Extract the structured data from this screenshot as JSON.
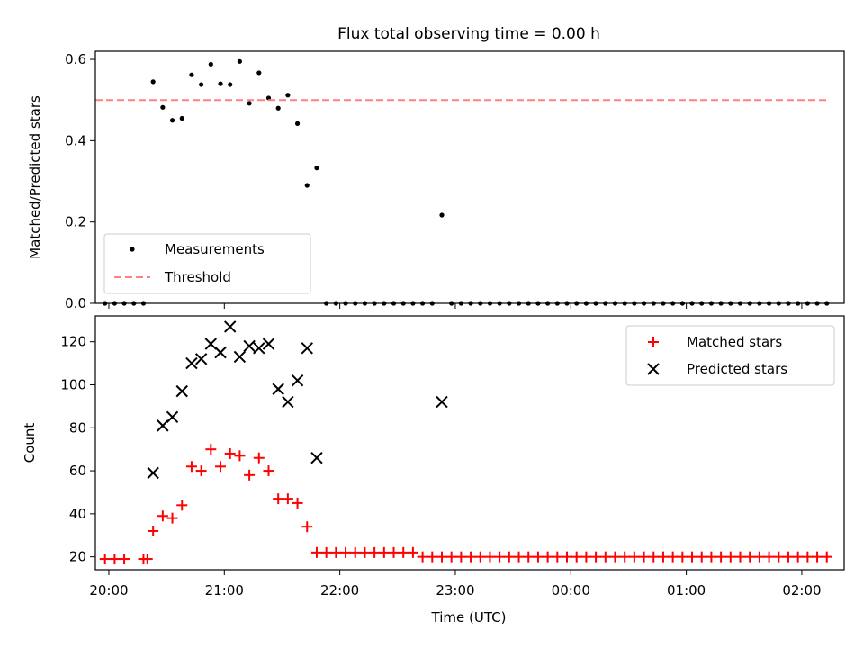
{
  "title": "Flux total observing time = 0.00 h",
  "colors": {
    "measurement": "#000000",
    "threshold": "#ff8080",
    "matched": "#ff0000",
    "predicted": "#000000",
    "axis": "#000000"
  },
  "chart_data": [
    {
      "type": "scatter",
      "panel": "top",
      "title": "Flux total observing time = 0.00 h",
      "ylabel": "Matched/Predicted stars",
      "ylim": [
        0,
        0.62
      ],
      "yticks": [
        0.0,
        0.2,
        0.4,
        0.6
      ],
      "ytick_labels": [
        "0.0",
        "0.2",
        "0.4",
        "0.6"
      ],
      "xlim": [
        "19:53",
        "02:22"
      ],
      "legend": {
        "placement": "lower-left",
        "entries": [
          {
            "label": "Measurements",
            "marker": "dot",
            "color": "#000000"
          },
          {
            "label": "Threshold",
            "marker": "dashed-line",
            "color": "#ff8080"
          }
        ]
      },
      "series": [
        {
          "name": "Measurements",
          "marker": "dot",
          "points": [
            [
              "19:58",
              0.0
            ],
            [
              "20:03",
              0.0
            ],
            [
              "20:08",
              0.0
            ],
            [
              "20:13",
              0.0
            ],
            [
              "20:18",
              0.0
            ],
            [
              "20:23",
              0.545
            ],
            [
              "20:28",
              0.482
            ],
            [
              "20:33",
              0.45
            ],
            [
              "20:38",
              0.455
            ],
            [
              "20:43",
              0.562
            ],
            [
              "20:48",
              0.538
            ],
            [
              "20:53",
              0.588
            ],
            [
              "20:58",
              0.54
            ],
            [
              "21:03",
              0.538
            ],
            [
              "21:08",
              0.595
            ],
            [
              "21:13",
              0.492
            ],
            [
              "21:18",
              0.567
            ],
            [
              "21:23",
              0.505
            ],
            [
              "21:28",
              0.48
            ],
            [
              "21:33",
              0.512
            ],
            [
              "21:38",
              0.442
            ],
            [
              "21:43",
              0.29
            ],
            [
              "21:48",
              0.333
            ],
            [
              "21:53",
              0.0
            ],
            [
              "21:58",
              0.0
            ],
            [
              "22:03",
              0.0
            ],
            [
              "22:08",
              0.0
            ],
            [
              "22:13",
              0.0
            ],
            [
              "22:18",
              0.0
            ],
            [
              "22:23",
              0.0
            ],
            [
              "22:28",
              0.0
            ],
            [
              "22:33",
              0.0
            ],
            [
              "22:38",
              0.0
            ],
            [
              "22:43",
              0.0
            ],
            [
              "22:48",
              0.0
            ],
            [
              "22:53",
              0.217
            ],
            [
              "22:58",
              0.0
            ],
            [
              "23:03",
              0.0
            ],
            [
              "23:08",
              0.0
            ],
            [
              "23:13",
              0.0
            ],
            [
              "23:18",
              0.0
            ],
            [
              "23:23",
              0.0
            ],
            [
              "23:28",
              0.0
            ],
            [
              "23:33",
              0.0
            ],
            [
              "23:38",
              0.0
            ],
            [
              "23:43",
              0.0
            ],
            [
              "23:48",
              0.0
            ],
            [
              "23:53",
              0.0
            ],
            [
              "23:58",
              0.0
            ],
            [
              "00:03",
              0.0
            ],
            [
              "00:08",
              0.0
            ],
            [
              "00:13",
              0.0
            ],
            [
              "00:18",
              0.0
            ],
            [
              "00:23",
              0.0
            ],
            [
              "00:28",
              0.0
            ],
            [
              "00:33",
              0.0
            ],
            [
              "00:38",
              0.0
            ],
            [
              "00:43",
              0.0
            ],
            [
              "00:48",
              0.0
            ],
            [
              "00:53",
              0.0
            ],
            [
              "00:58",
              0.0
            ],
            [
              "01:03",
              0.0
            ],
            [
              "01:08",
              0.0
            ],
            [
              "01:13",
              0.0
            ],
            [
              "01:18",
              0.0
            ],
            [
              "01:23",
              0.0
            ],
            [
              "01:28",
              0.0
            ],
            [
              "01:33",
              0.0
            ],
            [
              "01:38",
              0.0
            ],
            [
              "01:43",
              0.0
            ],
            [
              "01:48",
              0.0
            ],
            [
              "01:53",
              0.0
            ],
            [
              "01:58",
              0.0
            ],
            [
              "02:03",
              0.0
            ],
            [
              "02:08",
              0.0
            ],
            [
              "02:13",
              0.0
            ]
          ]
        },
        {
          "name": "Threshold",
          "style": "dashed",
          "points": [
            [
              "19:53",
              0.5
            ],
            [
              "02:13",
              0.5
            ]
          ]
        }
      ]
    },
    {
      "type": "scatter",
      "panel": "bottom",
      "xlabel": "Time (UTC)",
      "ylabel": "Count",
      "ylim": [
        14,
        132
      ],
      "yticks": [
        20,
        40,
        60,
        80,
        100,
        120
      ],
      "ytick_labels": [
        "20",
        "40",
        "60",
        "80",
        "100",
        "120"
      ],
      "xlim": [
        "19:53",
        "02:22"
      ],
      "xticks": [
        "20:00",
        "21:00",
        "22:00",
        "23:00",
        "00:00",
        "01:00",
        "02:00"
      ],
      "legend": {
        "placement": "upper-right",
        "entries": [
          {
            "label": "Matched stars",
            "marker": "plus",
            "color": "#ff0000"
          },
          {
            "label": "Predicted stars",
            "marker": "x",
            "color": "#000000"
          }
        ]
      },
      "series": [
        {
          "name": "Matched stars",
          "marker": "plus",
          "points": [
            [
              "19:58",
              19
            ],
            [
              "20:03",
              19
            ],
            [
              "20:08",
              19
            ],
            [
              "20:18",
              19
            ],
            [
              "20:20",
              19
            ],
            [
              "20:23",
              32
            ],
            [
              "20:28",
              39
            ],
            [
              "20:33",
              38
            ],
            [
              "20:38",
              44
            ],
            [
              "20:43",
              62
            ],
            [
              "20:48",
              60
            ],
            [
              "20:53",
              70
            ],
            [
              "20:58",
              62
            ],
            [
              "21:03",
              68
            ],
            [
              "21:08",
              67
            ],
            [
              "21:13",
              58
            ],
            [
              "21:18",
              66
            ],
            [
              "21:23",
              60
            ],
            [
              "21:28",
              47
            ],
            [
              "21:33",
              47
            ],
            [
              "21:38",
              45
            ],
            [
              "21:43",
              34
            ],
            [
              "21:48",
              22
            ],
            [
              "21:53",
              22
            ],
            [
              "21:58",
              22
            ],
            [
              "22:03",
              22
            ],
            [
              "22:08",
              22
            ],
            [
              "22:13",
              22
            ],
            [
              "22:18",
              22
            ],
            [
              "22:23",
              22
            ],
            [
              "22:28",
              22
            ],
            [
              "22:33",
              22
            ],
            [
              "22:38",
              22
            ],
            [
              "22:43",
              20
            ],
            [
              "22:48",
              20
            ],
            [
              "22:53",
              20
            ],
            [
              "22:58",
              20
            ],
            [
              "23:03",
              20
            ],
            [
              "23:08",
              20
            ],
            [
              "23:13",
              20
            ],
            [
              "23:18",
              20
            ],
            [
              "23:23",
              20
            ],
            [
              "23:28",
              20
            ],
            [
              "23:33",
              20
            ],
            [
              "23:38",
              20
            ],
            [
              "23:43",
              20
            ],
            [
              "23:48",
              20
            ],
            [
              "23:53",
              20
            ],
            [
              "23:58",
              20
            ],
            [
              "00:03",
              20
            ],
            [
              "00:08",
              20
            ],
            [
              "00:13",
              20
            ],
            [
              "00:18",
              20
            ],
            [
              "00:23",
              20
            ],
            [
              "00:28",
              20
            ],
            [
              "00:33",
              20
            ],
            [
              "00:38",
              20
            ],
            [
              "00:43",
              20
            ],
            [
              "00:48",
              20
            ],
            [
              "00:53",
              20
            ],
            [
              "00:58",
              20
            ],
            [
              "01:03",
              20
            ],
            [
              "01:08",
              20
            ],
            [
              "01:13",
              20
            ],
            [
              "01:18",
              20
            ],
            [
              "01:23",
              20
            ],
            [
              "01:28",
              20
            ],
            [
              "01:33",
              20
            ],
            [
              "01:38",
              20
            ],
            [
              "01:43",
              20
            ],
            [
              "01:48",
              20
            ],
            [
              "01:53",
              20
            ],
            [
              "01:58",
              20
            ],
            [
              "02:03",
              20
            ],
            [
              "02:08",
              20
            ],
            [
              "02:13",
              20
            ]
          ]
        },
        {
          "name": "Predicted stars",
          "marker": "x",
          "points": [
            [
              "20:23",
              59
            ],
            [
              "20:28",
              81
            ],
            [
              "20:33",
              85
            ],
            [
              "20:38",
              97
            ],
            [
              "20:43",
              110
            ],
            [
              "20:48",
              112
            ],
            [
              "20:53",
              119
            ],
            [
              "20:58",
              115
            ],
            [
              "21:03",
              127
            ],
            [
              "21:08",
              113
            ],
            [
              "21:13",
              118
            ],
            [
              "21:18",
              117
            ],
            [
              "21:23",
              119
            ],
            [
              "21:28",
              98
            ],
            [
              "21:33",
              92
            ],
            [
              "21:38",
              102
            ],
            [
              "21:43",
              117
            ],
            [
              "21:48",
              66
            ],
            [
              "22:53",
              92
            ]
          ]
        }
      ]
    }
  ]
}
